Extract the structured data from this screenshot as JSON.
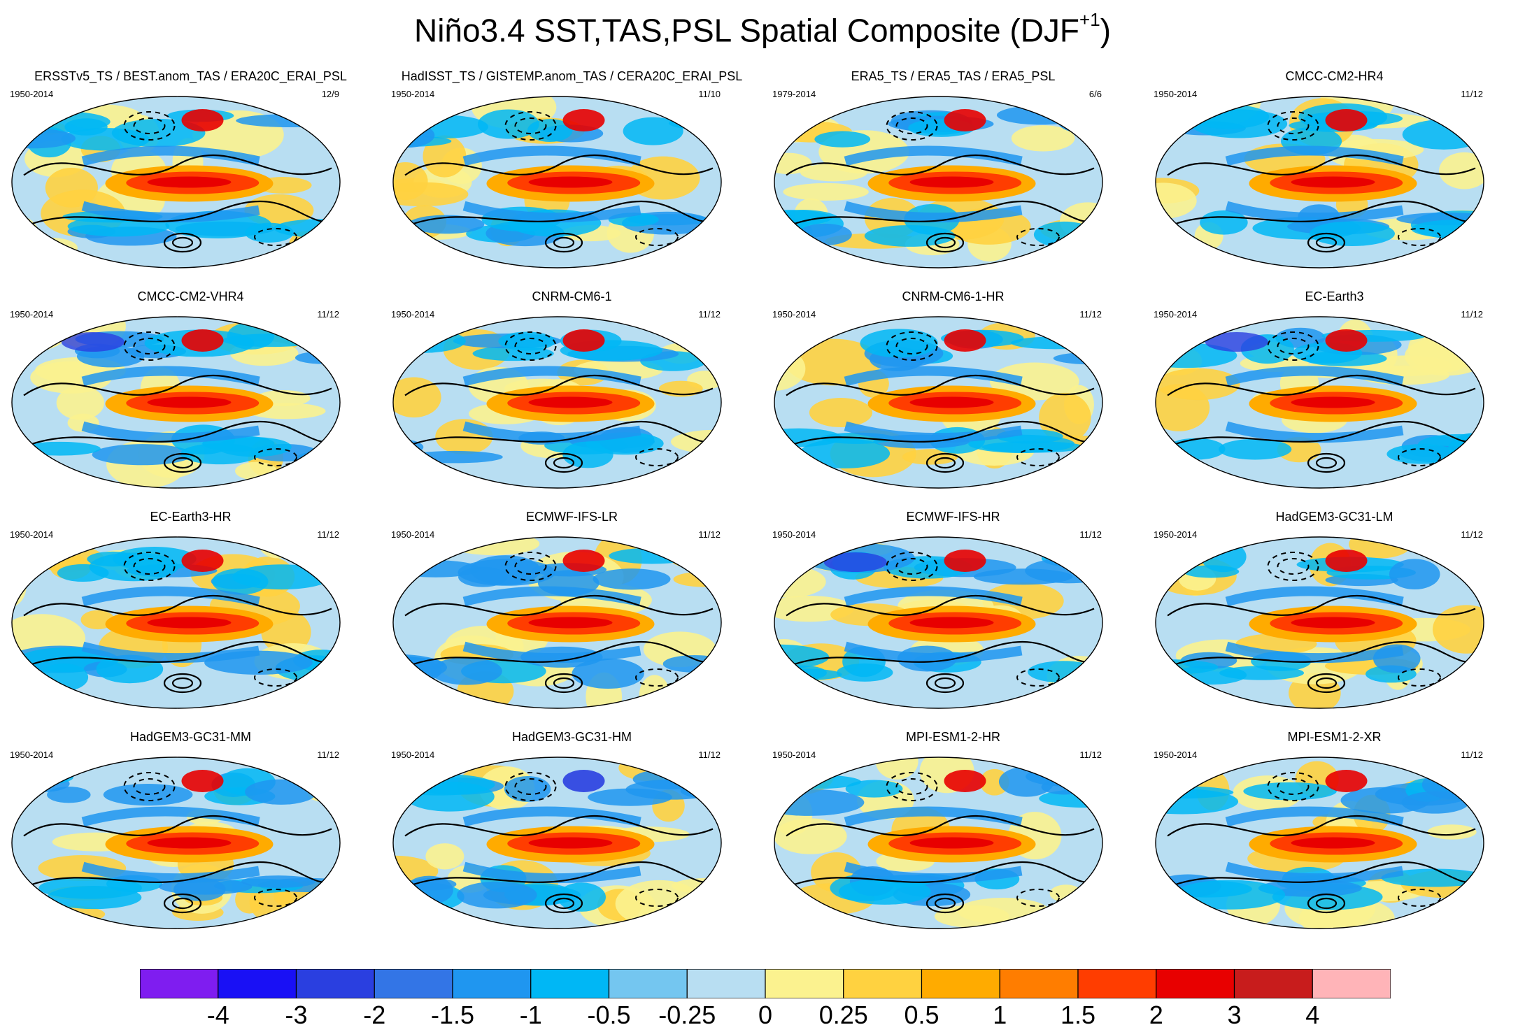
{
  "figure": {
    "title_main": "Niño3.4 SST,TAS,PSL Spatial Composite (DJF",
    "title_sup": "+1",
    "title_end": ")"
  },
  "panels": [
    {
      "title": "ERSSTv5_TS / BEST.anom_TAS / ERA20C_ERAI_PSL",
      "period": "1950-2014",
      "count": "12/9"
    },
    {
      "title": "HadISST_TS / GISTEMP.anom_TAS / CERA20C_ERAI_PSL",
      "period": "1950-2014",
      "count": "11/10"
    },
    {
      "title": "ERA5_TS / ERA5_TAS / ERA5_PSL",
      "period": "1979-2014",
      "count": "6/6"
    },
    {
      "title": "CMCC-CM2-HR4",
      "period": "1950-2014",
      "count": "11/12"
    },
    {
      "title": "CMCC-CM2-VHR4",
      "period": "1950-2014",
      "count": "11/12"
    },
    {
      "title": "CNRM-CM6-1",
      "period": "1950-2014",
      "count": "11/12"
    },
    {
      "title": "CNRM-CM6-1-HR",
      "period": "1950-2014",
      "count": "11/12"
    },
    {
      "title": "EC-Earth3",
      "period": "1950-2014",
      "count": "11/12"
    },
    {
      "title": "EC-Earth3-HR",
      "period": "1950-2014",
      "count": "11/12"
    },
    {
      "title": "ECMWF-IFS-LR",
      "period": "1950-2014",
      "count": "11/12"
    },
    {
      "title": "ECMWF-IFS-HR",
      "period": "1950-2014",
      "count": "11/12"
    },
    {
      "title": "HadGEM3-GC31-LM",
      "period": "1950-2014",
      "count": "11/12"
    },
    {
      "title": "HadGEM3-GC31-MM",
      "period": "1950-2014",
      "count": "11/12"
    },
    {
      "title": "HadGEM3-GC31-HM",
      "period": "1950-2014",
      "count": "11/12"
    },
    {
      "title": "MPI-ESM1-2-HR",
      "period": "1950-2014",
      "count": "11/12"
    },
    {
      "title": "MPI-ESM1-2-XR",
      "period": "1950-2014",
      "count": "11/12"
    }
  ],
  "colorbar": {
    "colors": [
      "#7f1df0",
      "#1910f5",
      "#2a3fe0",
      "#3375e6",
      "#1f96f0",
      "#00b7f5",
      "#74c6f0",
      "#b8def2",
      "#fbf28f",
      "#ffd240",
      "#ffab00",
      "#ff7d00",
      "#ff3d00",
      "#e80000",
      "#c81c1c",
      "#ffb4b8"
    ],
    "labels": [
      "-4",
      "-3",
      "-2",
      "-1.5",
      "-1",
      "-0.5",
      "-0.25",
      "0",
      "0.25",
      "0.5",
      "1",
      "1.5",
      "2",
      "3",
      "4"
    ]
  }
}
